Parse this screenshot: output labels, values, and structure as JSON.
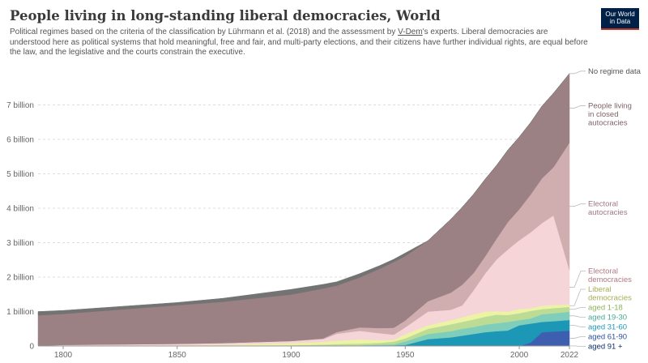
{
  "logo": {
    "line1": "Our World",
    "line2": "in Data"
  },
  "chart_data": {
    "type": "area",
    "stacked": true,
    "title": "People living in long-standing liberal democracies, World",
    "subtitle_parts": [
      "Political regimes based on the criteria of the classification by Lührmann et al. (2018) and the assessment by ",
      "V-Dem",
      "'s experts. Liberal democracies are understood here as political systems that hold meaningful, free and fair, and multi-party elections, and their citizens have further individual rights, are equal before the law, and the legislative and the courts constrain the executive."
    ],
    "x": [
      1789,
      1800,
      1850,
      1870,
      1900,
      1914,
      1920,
      1930,
      1939,
      1945,
      1950,
      1960,
      1970,
      1975,
      1980,
      1985,
      1990,
      1995,
      2000,
      2005,
      2010,
      2015,
      2022
    ],
    "xlim": [
      1789,
      2022
    ],
    "ylim": [
      0,
      8000000000
    ],
    "grid": true,
    "x_ticks": [
      "1800",
      "1850",
      "1900",
      "1950",
      "2000",
      "2022"
    ],
    "y_ticks": [
      "0",
      "1 billion",
      "2 billion",
      "3 billion",
      "4 billion",
      "5 billion",
      "6 billion",
      "7 billion"
    ],
    "series": [
      {
        "name": "aged 91 +",
        "color": "#0c2f66",
        "values": [
          0,
          0,
          0,
          0,
          0,
          0,
          0,
          0,
          0,
          0,
          0,
          0,
          0,
          0,
          0,
          0,
          0,
          0,
          0,
          0,
          0,
          0,
          5000000
        ]
      },
      {
        "name": "aged 61-90",
        "color": "#3e5fb0",
        "values": [
          0,
          0,
          0,
          0,
          0,
          0,
          0,
          0,
          0,
          0,
          0,
          0,
          0,
          0,
          0,
          0,
          0,
          0,
          0,
          100000000,
          400000000,
          420000000,
          440000000
        ]
      },
      {
        "name": "aged 31-60",
        "color": "#1c97b5",
        "values": [
          0,
          0,
          0,
          0,
          0,
          0,
          0,
          0,
          10000000,
          20000000,
          30000000,
          200000000,
          250000000,
          300000000,
          350000000,
          400000000,
          430000000,
          450000000,
          600000000,
          550000000,
          300000000,
          300000000,
          310000000
        ]
      },
      {
        "name": "aged 19-30",
        "color": "#7fcdbb",
        "values": [
          0,
          0,
          0,
          0,
          5000000,
          10000000,
          15000000,
          20000000,
          30000000,
          30000000,
          100000000,
          150000000,
          180000000,
          200000000,
          200000000,
          220000000,
          230000000,
          250000000,
          150000000,
          150000000,
          220000000,
          230000000,
          240000000
        ]
      },
      {
        "name": "aged 1-18",
        "color": "#bcdc96",
        "values": [
          0,
          2000000,
          3000000,
          5000000,
          20000000,
          30000000,
          40000000,
          50000000,
          50000000,
          80000000,
          90000000,
          150000000,
          200000000,
          200000000,
          220000000,
          230000000,
          250000000,
          200000000,
          200000000,
          220000000,
          150000000,
          150000000,
          140000000
        ]
      },
      {
        "name": "Liberal democracies",
        "color": "#ecf3a5",
        "values": [
          0,
          10000000,
          20000000,
          30000000,
          60000000,
          80000000,
          100000000,
          120000000,
          80000000,
          50000000,
          120000000,
          100000000,
          120000000,
          130000000,
          150000000,
          150000000,
          100000000,
          100000000,
          120000000,
          80000000,
          100000000,
          90000000,
          70000000
        ]
      },
      {
        "name": "Electoral democracies",
        "color": "#f6d5d9",
        "values": [
          10000000,
          20000000,
          40000000,
          50000000,
          60000000,
          80000000,
          200000000,
          250000000,
          200000000,
          150000000,
          200000000,
          400000000,
          300000000,
          350000000,
          700000000,
          1100000000,
          1500000000,
          1800000000,
          2000000000,
          2200000000,
          2400000000,
          2600000000,
          1000000000
        ]
      },
      {
        "name": "Electoral autocracies",
        "color": "#d0aeb0",
        "values": [
          0,
          0,
          0,
          0,
          0,
          20000000,
          50000000,
          100000000,
          150000000,
          200000000,
          200000000,
          300000000,
          500000000,
          600000000,
          500000000,
          500000000,
          600000000,
          800000000,
          900000000,
          1100000000,
          1300000000,
          1400000000,
          3700000000
        ]
      },
      {
        "name": "People living in closed autocracies",
        "color": "#9b8084",
        "values": [
          880000000,
          900000000,
          1120000000,
          1200000000,
          1350000000,
          1450000000,
          1350000000,
          1450000000,
          1730000000,
          1910000000,
          1870000000,
          1760000000,
          2130000000,
          2250000000,
          2290000000,
          2240000000,
          2130000000,
          2090000000,
          2100000000,
          2090000000,
          2100000000,
          2150000000,
          2005000000
        ]
      },
      {
        "name": "No regime data",
        "color": "#737373",
        "values": [
          110000000,
          100000000,
          80000000,
          100000000,
          150000000,
          120000000,
          110000000,
          110000000,
          90000000,
          80000000,
          90000000,
          0,
          0,
          0,
          0,
          0,
          0,
          0,
          0,
          0,
          0,
          0,
          0
        ]
      }
    ],
    "legend": "right"
  }
}
